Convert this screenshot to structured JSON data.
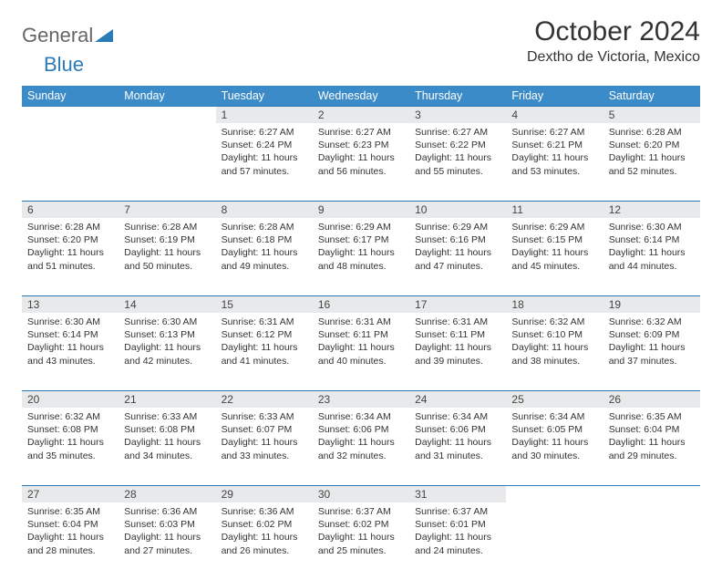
{
  "brand": {
    "name_part1": "General",
    "name_part2": "Blue"
  },
  "title": "October 2024",
  "location": "Dextho de Victoria, Mexico",
  "colors": {
    "header_bg": "#3b8bc8",
    "header_text": "#ffffff",
    "daynum_bg": "#e8e9ea",
    "border": "#2b7bb9",
    "brand_gray": "#666666",
    "brand_blue": "#2b7bb9"
  },
  "weekdays": [
    "Sunday",
    "Monday",
    "Tuesday",
    "Wednesday",
    "Thursday",
    "Friday",
    "Saturday"
  ],
  "first_weekday_index": 2,
  "days": [
    {
      "n": 1,
      "sunrise": "6:27 AM",
      "sunset": "6:24 PM",
      "daylight": "11 hours and 57 minutes."
    },
    {
      "n": 2,
      "sunrise": "6:27 AM",
      "sunset": "6:23 PM",
      "daylight": "11 hours and 56 minutes."
    },
    {
      "n": 3,
      "sunrise": "6:27 AM",
      "sunset": "6:22 PM",
      "daylight": "11 hours and 55 minutes."
    },
    {
      "n": 4,
      "sunrise": "6:27 AM",
      "sunset": "6:21 PM",
      "daylight": "11 hours and 53 minutes."
    },
    {
      "n": 5,
      "sunrise": "6:28 AM",
      "sunset": "6:20 PM",
      "daylight": "11 hours and 52 minutes."
    },
    {
      "n": 6,
      "sunrise": "6:28 AM",
      "sunset": "6:20 PM",
      "daylight": "11 hours and 51 minutes."
    },
    {
      "n": 7,
      "sunrise": "6:28 AM",
      "sunset": "6:19 PM",
      "daylight": "11 hours and 50 minutes."
    },
    {
      "n": 8,
      "sunrise": "6:28 AM",
      "sunset": "6:18 PM",
      "daylight": "11 hours and 49 minutes."
    },
    {
      "n": 9,
      "sunrise": "6:29 AM",
      "sunset": "6:17 PM",
      "daylight": "11 hours and 48 minutes."
    },
    {
      "n": 10,
      "sunrise": "6:29 AM",
      "sunset": "6:16 PM",
      "daylight": "11 hours and 47 minutes."
    },
    {
      "n": 11,
      "sunrise": "6:29 AM",
      "sunset": "6:15 PM",
      "daylight": "11 hours and 45 minutes."
    },
    {
      "n": 12,
      "sunrise": "6:30 AM",
      "sunset": "6:14 PM",
      "daylight": "11 hours and 44 minutes."
    },
    {
      "n": 13,
      "sunrise": "6:30 AM",
      "sunset": "6:14 PM",
      "daylight": "11 hours and 43 minutes."
    },
    {
      "n": 14,
      "sunrise": "6:30 AM",
      "sunset": "6:13 PM",
      "daylight": "11 hours and 42 minutes."
    },
    {
      "n": 15,
      "sunrise": "6:31 AM",
      "sunset": "6:12 PM",
      "daylight": "11 hours and 41 minutes."
    },
    {
      "n": 16,
      "sunrise": "6:31 AM",
      "sunset": "6:11 PM",
      "daylight": "11 hours and 40 minutes."
    },
    {
      "n": 17,
      "sunrise": "6:31 AM",
      "sunset": "6:11 PM",
      "daylight": "11 hours and 39 minutes."
    },
    {
      "n": 18,
      "sunrise": "6:32 AM",
      "sunset": "6:10 PM",
      "daylight": "11 hours and 38 minutes."
    },
    {
      "n": 19,
      "sunrise": "6:32 AM",
      "sunset": "6:09 PM",
      "daylight": "11 hours and 37 minutes."
    },
    {
      "n": 20,
      "sunrise": "6:32 AM",
      "sunset": "6:08 PM",
      "daylight": "11 hours and 35 minutes."
    },
    {
      "n": 21,
      "sunrise": "6:33 AM",
      "sunset": "6:08 PM",
      "daylight": "11 hours and 34 minutes."
    },
    {
      "n": 22,
      "sunrise": "6:33 AM",
      "sunset": "6:07 PM",
      "daylight": "11 hours and 33 minutes."
    },
    {
      "n": 23,
      "sunrise": "6:34 AM",
      "sunset": "6:06 PM",
      "daylight": "11 hours and 32 minutes."
    },
    {
      "n": 24,
      "sunrise": "6:34 AM",
      "sunset": "6:06 PM",
      "daylight": "11 hours and 31 minutes."
    },
    {
      "n": 25,
      "sunrise": "6:34 AM",
      "sunset": "6:05 PM",
      "daylight": "11 hours and 30 minutes."
    },
    {
      "n": 26,
      "sunrise": "6:35 AM",
      "sunset": "6:04 PM",
      "daylight": "11 hours and 29 minutes."
    },
    {
      "n": 27,
      "sunrise": "6:35 AM",
      "sunset": "6:04 PM",
      "daylight": "11 hours and 28 minutes."
    },
    {
      "n": 28,
      "sunrise": "6:36 AM",
      "sunset": "6:03 PM",
      "daylight": "11 hours and 27 minutes."
    },
    {
      "n": 29,
      "sunrise": "6:36 AM",
      "sunset": "6:02 PM",
      "daylight": "11 hours and 26 minutes."
    },
    {
      "n": 30,
      "sunrise": "6:37 AM",
      "sunset": "6:02 PM",
      "daylight": "11 hours and 25 minutes."
    },
    {
      "n": 31,
      "sunrise": "6:37 AM",
      "sunset": "6:01 PM",
      "daylight": "11 hours and 24 minutes."
    }
  ],
  "labels": {
    "sunrise": "Sunrise:",
    "sunset": "Sunset:",
    "daylight": "Daylight:"
  }
}
